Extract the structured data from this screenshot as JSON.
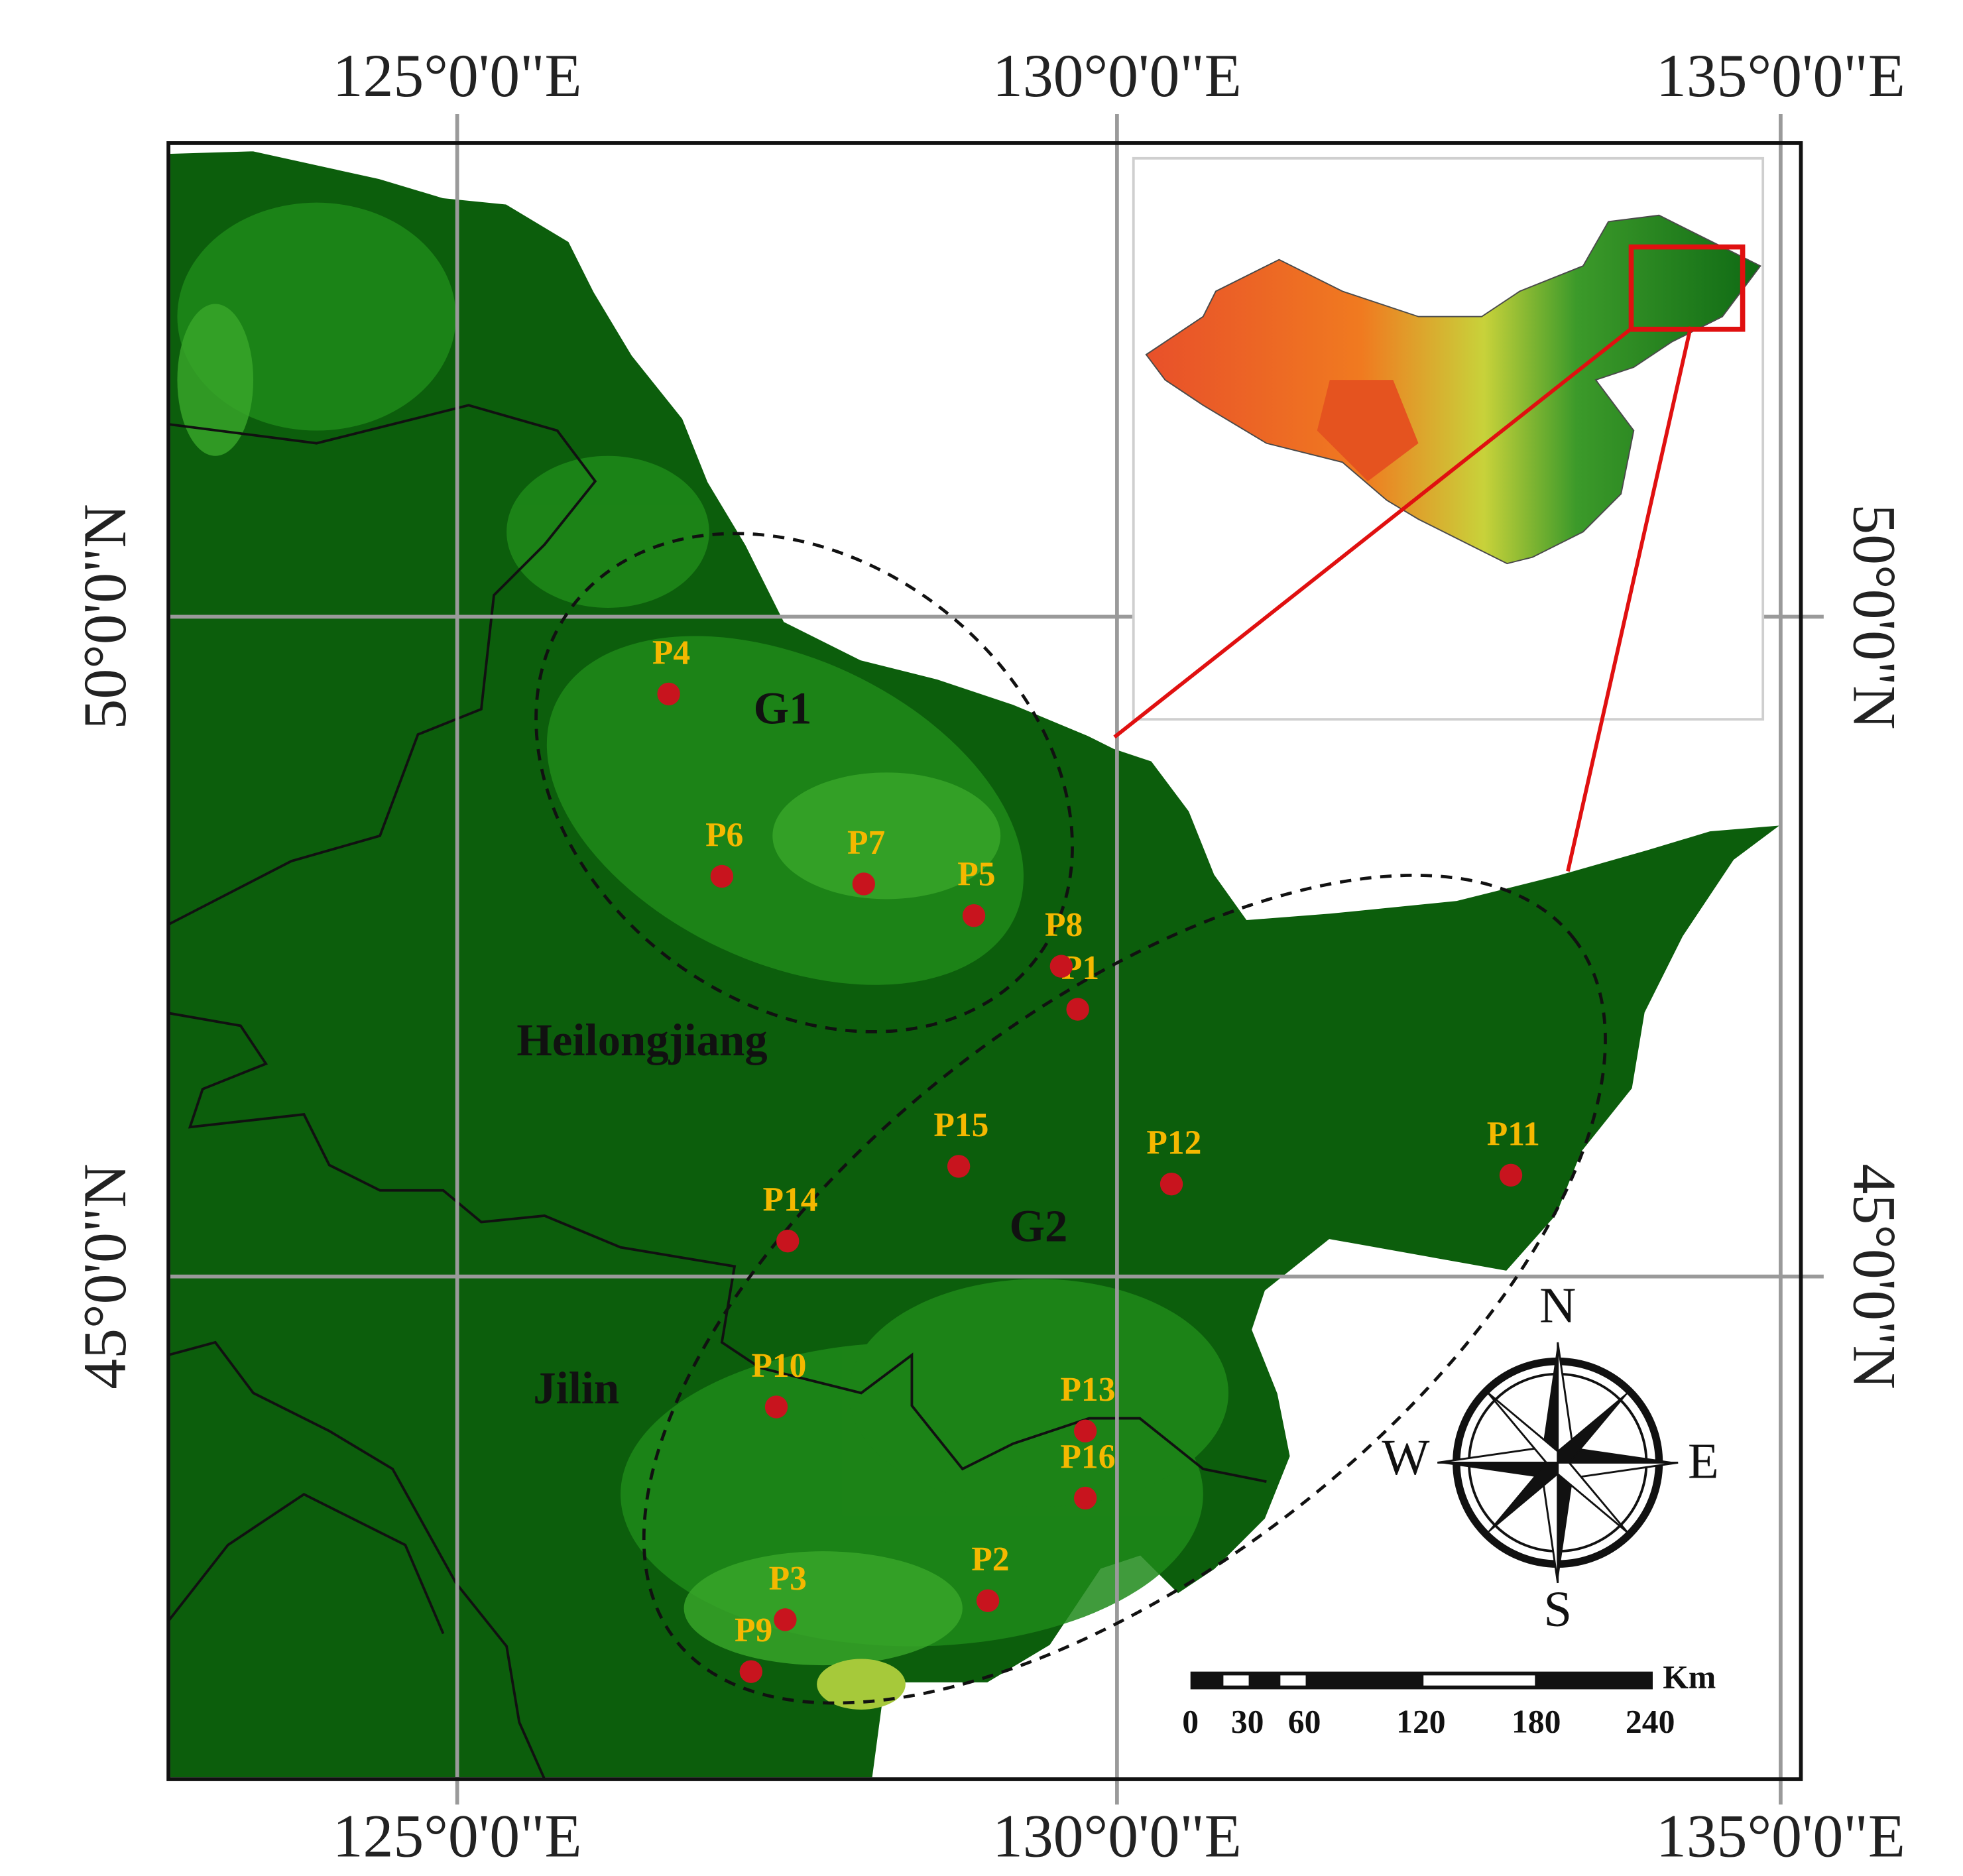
{
  "map": {
    "lon_labels_top": [
      "125°0'0\"E",
      "130°0'0\"E",
      "135°0'0\"E"
    ],
    "lon_labels_bottom": [
      "125°0'0\"E",
      "130°0'0\"E",
      "135°0'0\"E"
    ],
    "lat_labels_left": [
      "50°0'0\"N",
      "45°0'0\"N"
    ],
    "lat_labels_right": [
      "50°0'0\"N",
      "45°0'0\"N"
    ],
    "sites": [
      "P1",
      "P2",
      "P3",
      "P4",
      "P5",
      "P6",
      "P7",
      "P8",
      "P9",
      "P10",
      "P11",
      "P12",
      "P13",
      "P14",
      "P15",
      "P16"
    ],
    "regions": [
      "Heilongjiang",
      "Jilin"
    ],
    "groups": [
      "G1",
      "G2"
    ],
    "compass": [
      "N",
      "E",
      "S",
      "W"
    ],
    "scale_bar": {
      "labels": [
        "0",
        "30",
        "60",
        "120",
        "180",
        "240"
      ],
      "unit": "Km"
    }
  }
}
